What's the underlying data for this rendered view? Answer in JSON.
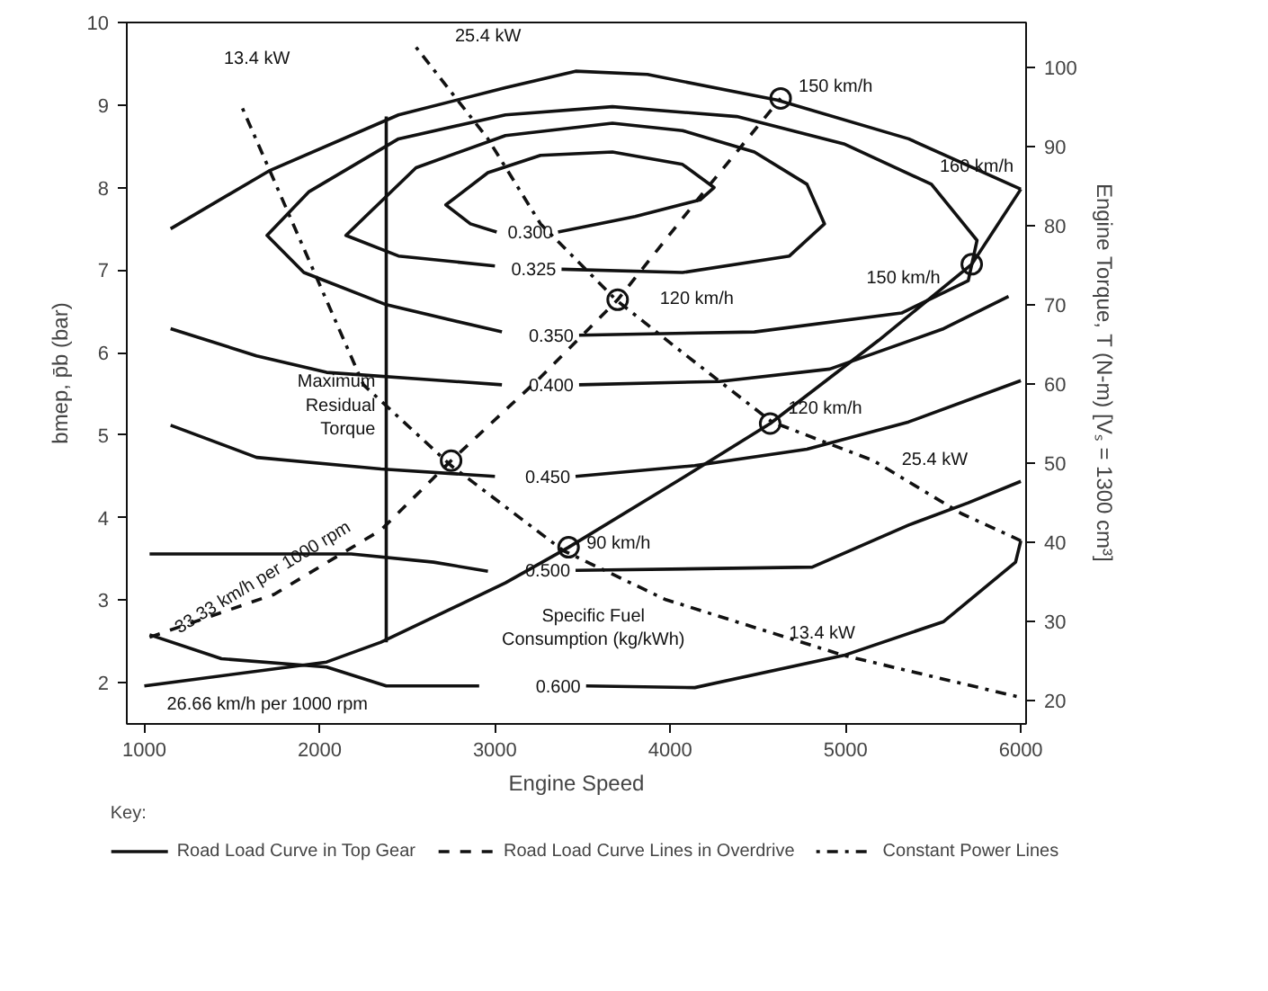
{
  "chart_data": {
    "type": "line",
    "xlabel": "Engine Speed",
    "ylabel": "bmep, p̄b (bar)",
    "y2label": "Engine Torque, T (N-m) [Vₛ = 1300 cm³]",
    "legend_title": "Key:",
    "legend": "bottom",
    "xlim": [
      900,
      6030
    ],
    "ylim": [
      1.5,
      10
    ],
    "y2lim": [
      17.1,
      105.7
    ],
    "xticks": [
      1000,
      2000,
      3000,
      4000,
      5000,
      6000
    ],
    "yticks": [
      2,
      3,
      4,
      5,
      6,
      7,
      8,
      9,
      10
    ],
    "y2ticks": [
      20,
      30,
      40,
      50,
      60,
      70,
      80,
      90,
      100
    ],
    "series": [
      {
        "name": "Road Load Curve in Top Gear",
        "color": "#111111",
        "line_style": "solid",
        "x": [
          1000,
          2040,
          2350,
          3060,
          3420,
          4070,
          4570,
          5190,
          5720,
          6000
        ],
        "values": [
          1.96,
          2.25,
          2.49,
          3.21,
          3.64,
          4.48,
          5.14,
          6.15,
          7.07,
          7.98
        ]
      },
      {
        "name": "Road Load Curve Lines in Overdrive",
        "color": "#111111",
        "line_style": "dashed",
        "x": [
          1030,
          1740,
          2350,
          2750,
          3260,
          3700,
          4170,
          4630
        ],
        "values": [
          2.55,
          3.07,
          3.85,
          4.69,
          5.7,
          6.64,
          7.89,
          9.08
        ]
      },
      {
        "name": "Constant Power Lines",
        "color": "#111111",
        "line_style": "dotted",
        "x": [
          1560,
          2250,
          2750,
          3390,
          3970,
          4990,
          6000
        ],
        "values": [
          8.96,
          5.61,
          4.63,
          3.6,
          3.01,
          2.33,
          1.82
        ]
      },
      {
        "color": "#111111",
        "line_style": "dotted",
        "x": [
          2550,
          2960,
          3260,
          3690,
          4070,
          4580,
          5160,
          5660,
          6000
        ],
        "values": [
          9.7,
          8.59,
          7.56,
          6.64,
          6.0,
          5.16,
          4.69,
          4.05,
          3.72
        ]
      },
      {
        "color": "#111111",
        "line_style": "solid",
        "x": [
          1150,
          1710,
          2450,
          3060,
          3460,
          3870,
          4610,
          5360,
          6000
        ],
        "values": [
          7.5,
          8.2,
          8.88,
          9.21,
          9.41,
          9.37,
          9.06,
          8.59,
          7.98
        ]
      },
      {
        "color": "#111111",
        "line_style": "solid",
        "x": [
          2380,
          2380
        ],
        "values": [
          8.86,
          2.49
        ]
      },
      {
        "color": "#111111",
        "line_style": "solid",
        "x": [
          3360,
          3800,
          4170,
          4250,
          4070,
          3670,
          3260,
          2960,
          2720,
          2860,
          3010
        ],
        "values": [
          7.46,
          7.65,
          7.85,
          8.0,
          8.28,
          8.43,
          8.39,
          8.18,
          7.79,
          7.56,
          7.46
        ]
      },
      {
        "color": "#111111",
        "line_style": "solid",
        "x": [
          3380,
          4070,
          4680,
          4880,
          4780,
          4480,
          4070,
          3670,
          3060,
          2550,
          2150,
          2450,
          3000
        ],
        "values": [
          7.01,
          6.97,
          7.17,
          7.56,
          8.04,
          8.43,
          8.69,
          8.78,
          8.63,
          8.24,
          7.42,
          7.17,
          7.05
        ]
      },
      {
        "color": "#111111",
        "line_style": "solid",
        "x": [
          3480,
          4480,
          5320,
          5700,
          5750,
          5490,
          4990,
          4380,
          3670,
          3060,
          2450,
          1940,
          1700,
          1910,
          2380,
          3040
        ],
        "values": [
          6.21,
          6.25,
          6.48,
          6.87,
          7.36,
          8.04,
          8.53,
          8.86,
          8.98,
          8.88,
          8.59,
          7.95,
          7.42,
          6.97,
          6.58,
          6.25
        ]
      },
      {
        "color": "#111111",
        "line_style": "solid",
        "x": [
          1150,
          1640,
          2040,
          3040
        ],
        "values": [
          6.29,
          5.96,
          5.76,
          5.61
        ]
      },
      {
        "color": "#111111",
        "line_style": "solid",
        "x": [
          3480,
          4280,
          4910,
          5560,
          5930
        ],
        "values": [
          5.61,
          5.65,
          5.8,
          6.29,
          6.68
        ]
      },
      {
        "color": "#111111",
        "line_style": "solid",
        "x": [
          1150,
          1640,
          2350,
          3000
        ],
        "values": [
          5.12,
          4.73,
          4.59,
          4.5
        ]
      },
      {
        "color": "#111111",
        "line_style": "solid",
        "x": [
          3460,
          4140,
          4780,
          5360,
          6000
        ],
        "values": [
          4.5,
          4.63,
          4.83,
          5.16,
          5.66
        ]
      },
      {
        "color": "#111111",
        "line_style": "solid",
        "x": [
          1030,
          2180,
          2650,
          2960
        ],
        "values": [
          3.56,
          3.56,
          3.46,
          3.35
        ]
      },
      {
        "color": "#111111",
        "line_style": "solid",
        "x": [
          3460,
          4810,
          5360,
          5700,
          6000
        ],
        "values": [
          3.36,
          3.4,
          3.91,
          4.18,
          4.44
        ]
      },
      {
        "color": "#111111",
        "line_style": "solid",
        "x": [
          1030,
          1440,
          2040,
          2380,
          2910
        ],
        "values": [
          2.58,
          2.29,
          2.19,
          1.96,
          1.96
        ]
      },
      {
        "color": "#111111",
        "line_style": "solid",
        "x": [
          3520,
          4140,
          4990,
          5560,
          5970,
          6000
        ],
        "values": [
          1.96,
          1.94,
          2.33,
          2.74,
          3.46,
          3.72
        ]
      },
      {
        "type": "scatter",
        "marker": "circle",
        "color": "#111111",
        "x": [
          2750,
          3420,
          3700,
          4570,
          4630,
          5720
        ],
        "values": [
          4.69,
          3.64,
          6.64,
          5.14,
          9.08,
          7.07
        ]
      }
    ],
    "annotations": [
      {
        "text": "0.300",
        "x": 3360,
        "y": 7.46
      },
      {
        "text": "0.325",
        "x": 3380,
        "y": 7.01
      },
      {
        "text": "0.350",
        "x": 3480,
        "y": 6.21
      },
      {
        "text": "0.400",
        "x": 3480,
        "y": 5.61
      },
      {
        "text": "0.450",
        "x": 3460,
        "y": 4.5
      },
      {
        "text": "0.500",
        "x": 3460,
        "y": 3.36
      },
      {
        "text": "0.600",
        "x": 3520,
        "y": 1.96
      },
      {
        "text": "13.4 kW",
        "x": 1560,
        "y": 8.96
      },
      {
        "text": "13.4 kW",
        "x": 4990,
        "y": 2.33
      },
      {
        "text": "25.4 kW",
        "x": 2550,
        "y": 9.7
      },
      {
        "text": "25.4 kW",
        "x": 5160,
        "y": 4.69
      },
      {
        "text": "150 km/h",
        "x": 4630,
        "y": 9.08
      },
      {
        "text": "160 km/h",
        "x": 6000,
        "y": 7.98
      },
      {
        "text": "120 km/h",
        "x": 3700,
        "y": 6.64
      },
      {
        "text": "150 km/h",
        "x": 5720,
        "y": 7.07
      },
      {
        "text": "120 km/h",
        "x": 4570,
        "y": 5.14
      },
      {
        "text": "90 km/h",
        "x": 3420,
        "y": 3.64
      },
      {
        "text": "Maximum\nResidual\nTorque",
        "x": 2380,
        "y": 5.35
      },
      {
        "text": "Specific Fuel\nConsumption (kg/kWh)",
        "x": 3520,
        "y": 1.96
      },
      {
        "text": "33.33 km/h per 1000 rpm",
        "x": 1740,
        "y": 3.07
      },
      {
        "text": "26.66 km/h per 1000 rpm",
        "x": 2040,
        "y": 2.25
      }
    ]
  }
}
